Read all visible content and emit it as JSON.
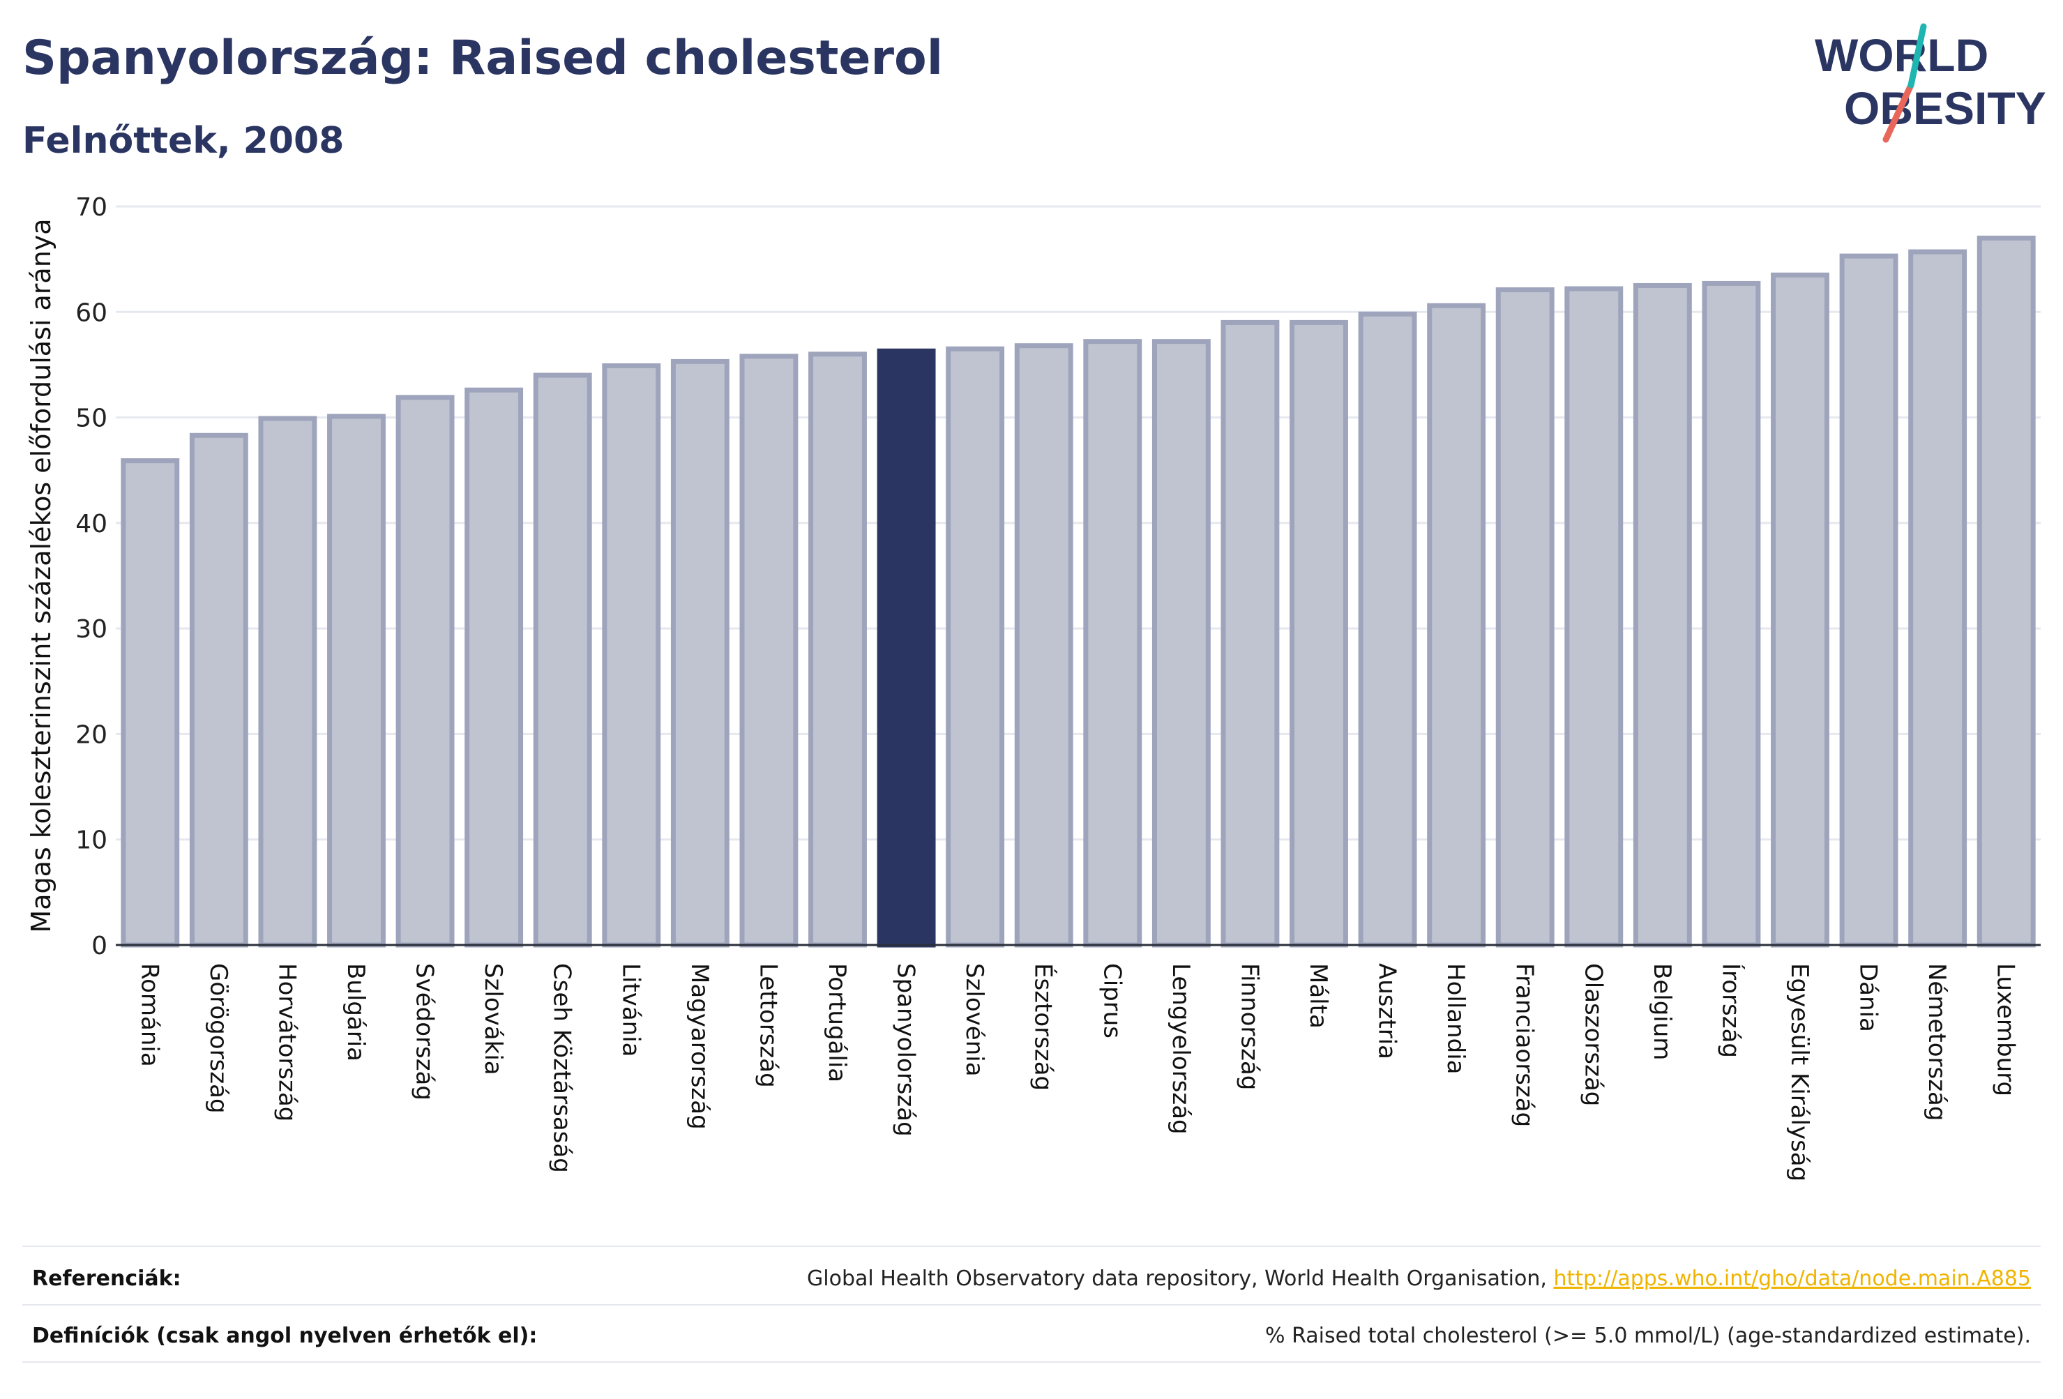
{
  "header": {
    "title": "Spanyolország: Raised cholesterol",
    "subtitle": "Felnőttek, 2008"
  },
  "logo": {
    "line1": "WORLD",
    "line2": "OBESITY",
    "colors": {
      "text": "#2b3562",
      "slash_teal": "#1fb5b0",
      "slash_coral": "#e8675a"
    }
  },
  "chart_data": {
    "type": "bar",
    "ylabel": "Magas koleszterinszint százalékos előfordulási aránya",
    "xlabel": "",
    "ylim": [
      0,
      70
    ],
    "yticks": [
      0,
      10,
      20,
      30,
      40,
      50,
      60,
      70
    ],
    "grid": true,
    "highlight": "Spanyolország",
    "colors": {
      "bar_fill": "#c0c4d0",
      "bar_stroke": "#9ea4bb",
      "highlight_fill": "#2b3562",
      "grid": "#e6e8ef",
      "axis": "#2b2f3a"
    },
    "categories": [
      "Románia",
      "Görögország",
      "Horvátország",
      "Bulgária",
      "Svédország",
      "Szlovákia",
      "Cseh Köztársaság",
      "Litvánia",
      "Magyarország",
      "Lettország",
      "Portugália",
      "Spanyolország",
      "Szlovénia",
      "Észtország",
      "Ciprus",
      "Lengyelország",
      "Finnország",
      "Málta",
      "Ausztria",
      "Hollandia",
      "Franciaország",
      "Olaszország",
      "Belgium",
      "Írország",
      "Egyesült Királyság",
      "Dánia",
      "Németország",
      "Luxemburg"
    ],
    "values": [
      45.9,
      48.3,
      49.9,
      50.1,
      51.9,
      52.6,
      54.0,
      54.9,
      55.3,
      55.8,
      56.0,
      56.3,
      56.5,
      56.8,
      57.2,
      57.2,
      59.0,
      59.0,
      59.8,
      60.6,
      62.1,
      62.2,
      62.5,
      62.7,
      63.5,
      65.3,
      65.7,
      67.0
    ]
  },
  "footer": {
    "references_label": "Referenciák:",
    "references_text": "Global Health Observatory data repository, World Health Organisation, ",
    "references_link": "http://apps.who.int/gho/data/node.main.A885",
    "definitions_label": "Definíciók (csak angol nyelven érhetők el):",
    "definitions_text": "% Raised total cholesterol (>= 5.0 mmol/L) (age-standardized estimate)."
  }
}
